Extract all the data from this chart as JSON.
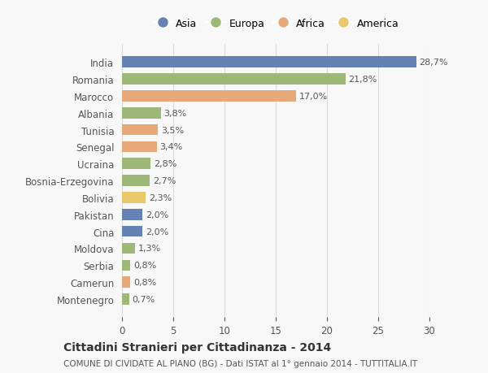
{
  "countries": [
    "India",
    "Romania",
    "Marocco",
    "Albania",
    "Tunisia",
    "Senegal",
    "Ucraina",
    "Bosnia-Erzegovina",
    "Bolivia",
    "Pakistan",
    "Cina",
    "Moldova",
    "Serbia",
    "Camerun",
    "Montenegro"
  ],
  "values": [
    28.7,
    21.8,
    17.0,
    3.8,
    3.5,
    3.4,
    2.8,
    2.7,
    2.3,
    2.0,
    2.0,
    1.3,
    0.8,
    0.8,
    0.7
  ],
  "labels": [
    "28,7%",
    "21,8%",
    "17,0%",
    "3,8%",
    "3,5%",
    "3,4%",
    "2,8%",
    "2,7%",
    "2,3%",
    "2,0%",
    "2,0%",
    "1,3%",
    "0,8%",
    "0,8%",
    "0,7%"
  ],
  "continents": [
    "Asia",
    "Europa",
    "Africa",
    "Europa",
    "Africa",
    "Africa",
    "Europa",
    "Europa",
    "America",
    "Asia",
    "Asia",
    "Europa",
    "Europa",
    "Africa",
    "Europa"
  ],
  "continent_colors": {
    "Asia": "#6682b4",
    "Europa": "#9eb87a",
    "Africa": "#e8a97a",
    "America": "#e8c86a"
  },
  "legend_order": [
    "Asia",
    "Europa",
    "Africa",
    "America"
  ],
  "title": "Cittadini Stranieri per Cittadinanza - 2014",
  "subtitle": "COMUNE DI CIVIDATE AL PIANO (BG) - Dati ISTAT al 1° gennaio 2014 - TUTTITALIA.IT",
  "xlim": [
    0,
    30
  ],
  "xticks": [
    0,
    5,
    10,
    15,
    20,
    25,
    30
  ],
  "background_color": "#f8f8f8",
  "grid_color": "#dddddd",
  "bar_height": 0.65
}
